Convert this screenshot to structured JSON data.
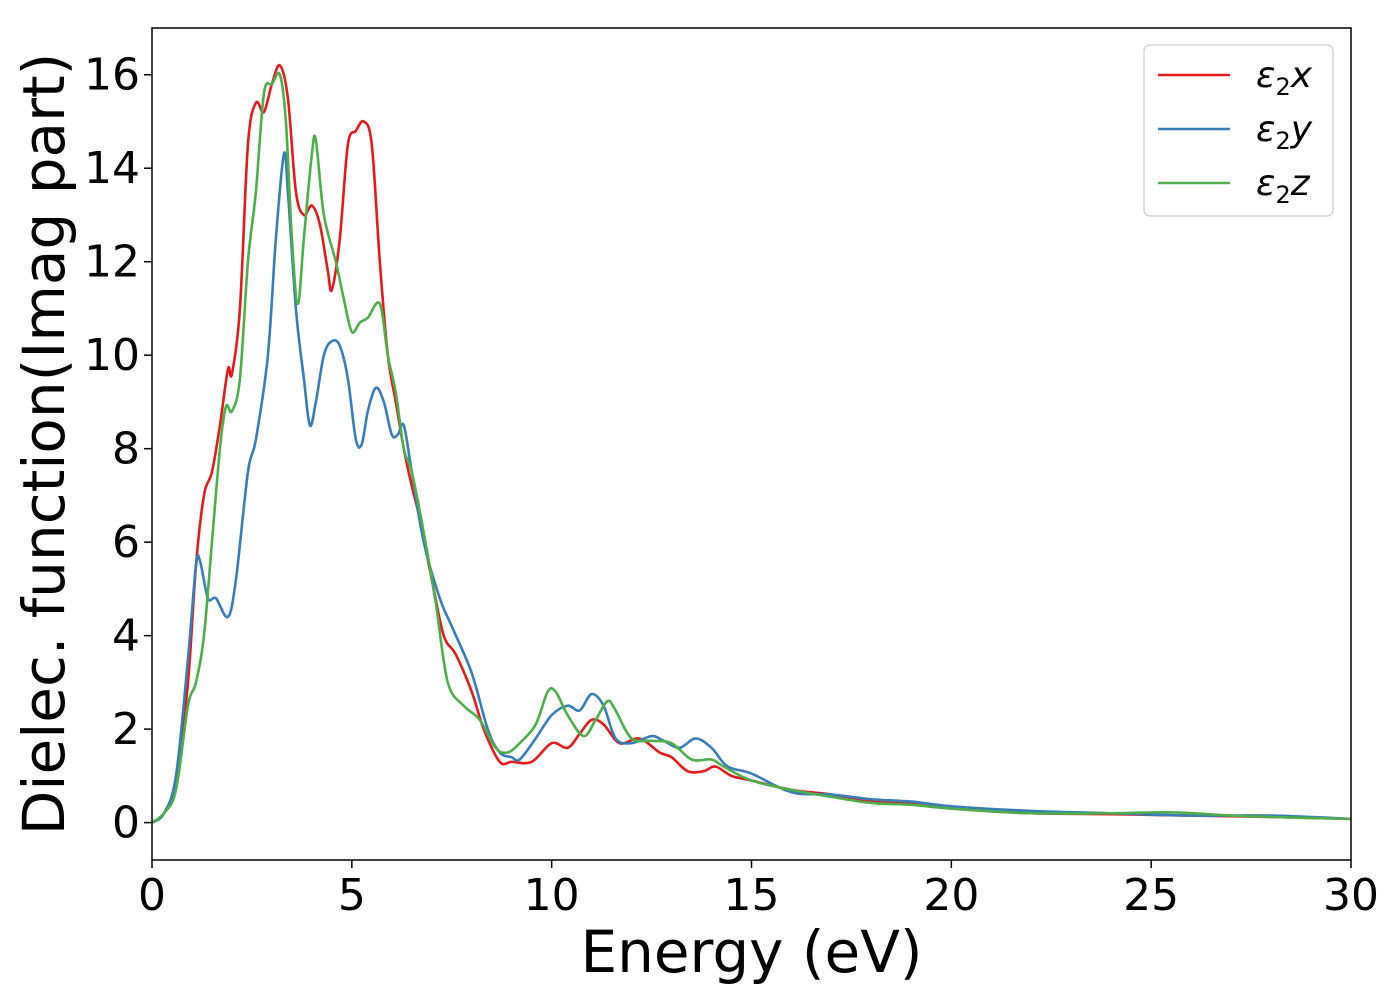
{
  "chart_data": {
    "type": "line",
    "xlabel": "Energy (eV)",
    "ylabel": "Dielec. function(Imag part)",
    "xlim": [
      0,
      30
    ],
    "ylim": [
      -0.8,
      17
    ],
    "xticks": [
      0,
      5,
      10,
      15,
      20,
      25,
      30
    ],
    "yticks": [
      0,
      2,
      4,
      6,
      8,
      10,
      12,
      14,
      16
    ],
    "grid": false,
    "legend_position": "top-right",
    "series": [
      {
        "name": "ε2x",
        "legend_base": "ε",
        "legend_sub": "2",
        "legend_var": "x",
        "color": "#e41a1c",
        "points": [
          [
            0,
            0
          ],
          [
            0.3,
            0.2
          ],
          [
            0.6,
            0.8
          ],
          [
            0.9,
            3.0
          ],
          [
            1.1,
            5.5
          ],
          [
            1.3,
            7.0
          ],
          [
            1.5,
            7.5
          ],
          [
            1.7,
            8.5
          ],
          [
            1.9,
            9.7
          ],
          [
            2.0,
            9.6
          ],
          [
            2.2,
            11.0
          ],
          [
            2.4,
            14.5
          ],
          [
            2.6,
            15.4
          ],
          [
            2.8,
            15.2
          ],
          [
            3.0,
            15.8
          ],
          [
            3.2,
            16.2
          ],
          [
            3.4,
            15.5
          ],
          [
            3.6,
            13.5
          ],
          [
            3.8,
            13.0
          ],
          [
            4.0,
            13.2
          ],
          [
            4.2,
            12.8
          ],
          [
            4.4,
            11.8
          ],
          [
            4.5,
            11.4
          ],
          [
            4.7,
            12.5
          ],
          [
            4.9,
            14.5
          ],
          [
            5.1,
            14.8
          ],
          [
            5.3,
            15.0
          ],
          [
            5.5,
            14.5
          ],
          [
            5.7,
            12.0
          ],
          [
            5.9,
            10.0
          ],
          [
            6.1,
            9.0
          ],
          [
            6.3,
            8.0
          ],
          [
            6.5,
            7.2
          ],
          [
            6.7,
            6.5
          ],
          [
            7.0,
            5.2
          ],
          [
            7.3,
            4.0
          ],
          [
            7.6,
            3.6
          ],
          [
            8.0,
            2.8
          ],
          [
            8.3,
            2.0
          ],
          [
            8.7,
            1.3
          ],
          [
            9.0,
            1.3
          ],
          [
            9.5,
            1.3
          ],
          [
            10.0,
            1.7
          ],
          [
            10.4,
            1.6
          ],
          [
            10.7,
            1.9
          ],
          [
            11.0,
            2.2
          ],
          [
            11.3,
            2.1
          ],
          [
            11.7,
            1.7
          ],
          [
            12.2,
            1.8
          ],
          [
            12.7,
            1.5
          ],
          [
            13.0,
            1.4
          ],
          [
            13.4,
            1.1
          ],
          [
            13.8,
            1.1
          ],
          [
            14.1,
            1.2
          ],
          [
            14.5,
            1.0
          ],
          [
            15.0,
            0.9
          ],
          [
            16.0,
            0.7
          ],
          [
            17.0,
            0.6
          ],
          [
            18.0,
            0.45
          ],
          [
            19.0,
            0.4
          ],
          [
            20.0,
            0.3
          ],
          [
            22.0,
            0.2
          ],
          [
            24.0,
            0.18
          ],
          [
            26.0,
            0.15
          ],
          [
            28.0,
            0.12
          ],
          [
            30.0,
            0.08
          ]
        ]
      },
      {
        "name": "ε2y",
        "legend_base": "ε",
        "legend_sub": "2",
        "legend_var": "y",
        "color": "#377eb8",
        "points": [
          [
            0,
            0
          ],
          [
            0.3,
            0.2
          ],
          [
            0.6,
            1.0
          ],
          [
            0.9,
            3.5
          ],
          [
            1.1,
            5.5
          ],
          [
            1.2,
            5.6
          ],
          [
            1.4,
            4.8
          ],
          [
            1.6,
            4.8
          ],
          [
            1.9,
            4.4
          ],
          [
            2.1,
            5.2
          ],
          [
            2.4,
            7.5
          ],
          [
            2.6,
            8.2
          ],
          [
            2.9,
            10.0
          ],
          [
            3.1,
            12.5
          ],
          [
            3.3,
            14.3
          ],
          [
            3.4,
            13.5
          ],
          [
            3.6,
            11.0
          ],
          [
            3.8,
            9.5
          ],
          [
            3.95,
            8.5
          ],
          [
            4.1,
            9.0
          ],
          [
            4.3,
            10.0
          ],
          [
            4.5,
            10.3
          ],
          [
            4.7,
            10.2
          ],
          [
            4.9,
            9.5
          ],
          [
            5.1,
            8.2
          ],
          [
            5.25,
            8.1
          ],
          [
            5.4,
            8.8
          ],
          [
            5.6,
            9.3
          ],
          [
            5.8,
            9.0
          ],
          [
            6.0,
            8.3
          ],
          [
            6.15,
            8.3
          ],
          [
            6.3,
            8.5
          ],
          [
            6.5,
            7.5
          ],
          [
            6.8,
            6.0
          ],
          [
            7.2,
            4.8
          ],
          [
            7.5,
            4.2
          ],
          [
            8.0,
            3.2
          ],
          [
            8.4,
            2.0
          ],
          [
            8.7,
            1.5
          ],
          [
            9.0,
            1.4
          ],
          [
            9.2,
            1.35
          ],
          [
            9.6,
            1.8
          ],
          [
            10.0,
            2.3
          ],
          [
            10.4,
            2.5
          ],
          [
            10.7,
            2.4
          ],
          [
            11.0,
            2.75
          ],
          [
            11.3,
            2.5
          ],
          [
            11.6,
            1.8
          ],
          [
            12.0,
            1.7
          ],
          [
            12.5,
            1.85
          ],
          [
            12.8,
            1.75
          ],
          [
            13.2,
            1.6
          ],
          [
            13.6,
            1.8
          ],
          [
            14.0,
            1.6
          ],
          [
            14.4,
            1.2
          ],
          [
            15.0,
            1.05
          ],
          [
            16.0,
            0.65
          ],
          [
            17.0,
            0.6
          ],
          [
            18.0,
            0.5
          ],
          [
            19.0,
            0.45
          ],
          [
            20.0,
            0.35
          ],
          [
            22.0,
            0.25
          ],
          [
            24.0,
            0.2
          ],
          [
            26.0,
            0.15
          ],
          [
            28.0,
            0.15
          ],
          [
            30.0,
            0.08
          ]
        ]
      },
      {
        "name": "ε2z",
        "legend_base": "ε",
        "legend_sub": "2",
        "legend_var": "z",
        "color": "#4daf4a",
        "points": [
          [
            0,
            0
          ],
          [
            0.3,
            0.2
          ],
          [
            0.6,
            0.7
          ],
          [
            0.9,
            2.5
          ],
          [
            1.1,
            3.0
          ],
          [
            1.3,
            4.0
          ],
          [
            1.5,
            6.0
          ],
          [
            1.7,
            8.0
          ],
          [
            1.85,
            8.9
          ],
          [
            2.0,
            8.8
          ],
          [
            2.2,
            9.5
          ],
          [
            2.4,
            12.0
          ],
          [
            2.6,
            13.5
          ],
          [
            2.8,
            15.6
          ],
          [
            3.0,
            15.8
          ],
          [
            3.2,
            16.0
          ],
          [
            3.35,
            15.0
          ],
          [
            3.5,
            12.5
          ],
          [
            3.65,
            11.1
          ],
          [
            3.8,
            12.5
          ],
          [
            4.0,
            14.3
          ],
          [
            4.1,
            14.6
          ],
          [
            4.3,
            13.0
          ],
          [
            4.6,
            12.0
          ],
          [
            4.8,
            11.2
          ],
          [
            5.0,
            10.5
          ],
          [
            5.2,
            10.7
          ],
          [
            5.4,
            10.8
          ],
          [
            5.7,
            11.1
          ],
          [
            5.9,
            10.0
          ],
          [
            6.1,
            9.2
          ],
          [
            6.3,
            8.0
          ],
          [
            6.5,
            7.5
          ],
          [
            6.8,
            6.2
          ],
          [
            7.1,
            4.7
          ],
          [
            7.4,
            3.0
          ],
          [
            7.8,
            2.5
          ],
          [
            8.2,
            2.2
          ],
          [
            8.6,
            1.6
          ],
          [
            8.9,
            1.5
          ],
          [
            9.2,
            1.7
          ],
          [
            9.6,
            2.1
          ],
          [
            9.9,
            2.8
          ],
          [
            10.1,
            2.8
          ],
          [
            10.4,
            2.3
          ],
          [
            10.8,
            1.85
          ],
          [
            11.1,
            2.2
          ],
          [
            11.4,
            2.6
          ],
          [
            11.6,
            2.4
          ],
          [
            12.0,
            1.8
          ],
          [
            12.5,
            1.75
          ],
          [
            13.0,
            1.7
          ],
          [
            13.5,
            1.35
          ],
          [
            14.0,
            1.35
          ],
          [
            14.3,
            1.2
          ],
          [
            15.0,
            0.9
          ],
          [
            16.0,
            0.7
          ],
          [
            17.0,
            0.55
          ],
          [
            18.0,
            0.42
          ],
          [
            19.0,
            0.38
          ],
          [
            20.0,
            0.3
          ],
          [
            22.0,
            0.2
          ],
          [
            24.0,
            0.2
          ],
          [
            25.5,
            0.22
          ],
          [
            27.0,
            0.15
          ],
          [
            28.0,
            0.12
          ],
          [
            30.0,
            0.08
          ]
        ]
      }
    ]
  }
}
